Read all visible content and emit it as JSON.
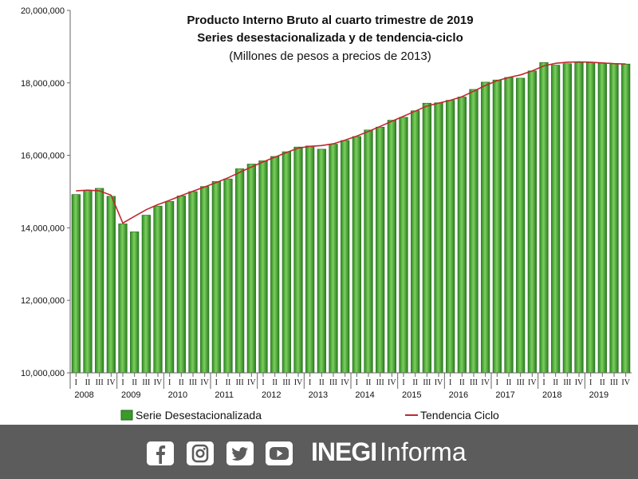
{
  "chart_data": {
    "type": "bar",
    "title": "Producto Interno Bruto al cuarto trimestre de 2019",
    "subtitle": "Series desestacionalizada y de tendencia-ciclo",
    "units_note": "(Millones de pesos a precios de 2013)",
    "ylim": [
      10000000,
      20000000
    ],
    "y_ticks": [
      "10,000,000",
      "12,000,000",
      "14,000,000",
      "16,000,000",
      "18,000,000",
      "20,000,000"
    ],
    "y_tick_values": [
      10000000,
      12000000,
      14000000,
      16000000,
      18000000,
      20000000
    ],
    "quarter_labels": [
      "I",
      "II",
      "III",
      "IV"
    ],
    "years": [
      "2008",
      "2009",
      "2010",
      "2011",
      "2012",
      "2013",
      "2014",
      "2015",
      "2016",
      "2017",
      "2018",
      "2019"
    ],
    "grid": false,
    "legend_position": "bottom",
    "series": [
      {
        "name": "Serie Desestacionalizada",
        "type": "bar",
        "color": "#3a9a2a",
        "values": [
          14920000,
          15040000,
          15090000,
          14870000,
          14110000,
          13890000,
          14350000,
          14600000,
          14730000,
          14880000,
          15000000,
          15140000,
          15280000,
          15350000,
          15630000,
          15760000,
          15850000,
          15970000,
          16100000,
          16230000,
          16260000,
          16170000,
          16310000,
          16410000,
          16520000,
          16700000,
          16780000,
          16970000,
          17050000,
          17230000,
          17440000,
          17450000,
          17520000,
          17610000,
          17820000,
          18020000,
          18080000,
          18150000,
          18130000,
          18330000,
          18560000,
          18490000,
          18530000,
          18560000,
          18560000,
          18550000,
          18530000,
          18520000
        ]
      },
      {
        "name": "Tendencia Ciclo",
        "type": "line",
        "color": "#c0282e",
        "values": [
          15020000,
          15040000,
          15020000,
          14900000,
          14130000,
          14320000,
          14500000,
          14640000,
          14760000,
          14890000,
          15010000,
          15130000,
          15250000,
          15380000,
          15530000,
          15680000,
          15820000,
          15950000,
          16080000,
          16200000,
          16250000,
          16270000,
          16320000,
          16420000,
          16530000,
          16660000,
          16800000,
          16940000,
          17080000,
          17220000,
          17360000,
          17440000,
          17520000,
          17620000,
          17770000,
          17930000,
          18060000,
          18150000,
          18220000,
          18330000,
          18470000,
          18540000,
          18570000,
          18580000,
          18570000,
          18550000,
          18530000,
          18520000
        ]
      }
    ]
  },
  "footer": {
    "brand_bold": "INEGI",
    "brand_light": "Informa",
    "social_icons": [
      "facebook-icon",
      "instagram-icon",
      "twitter-icon",
      "youtube-icon"
    ]
  }
}
